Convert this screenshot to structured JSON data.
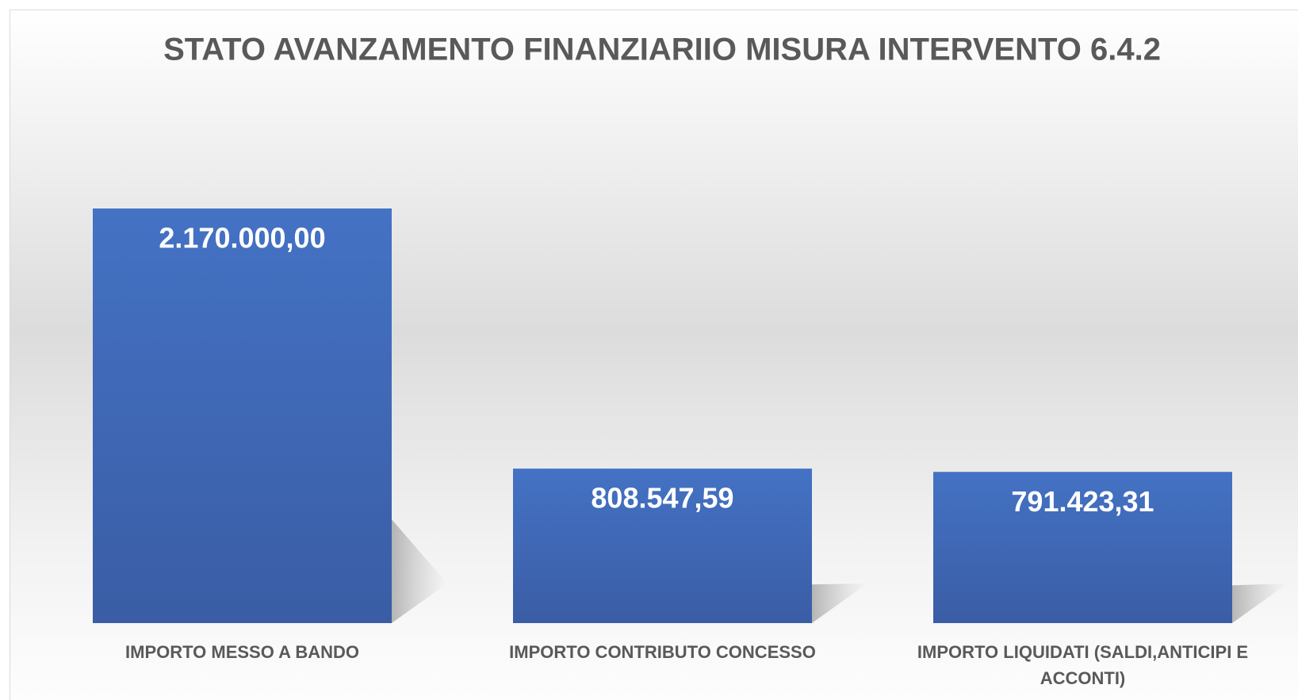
{
  "chart_data": {
    "type": "bar",
    "title": "STATO AVANZAMENTO FINANZIARIIO MISURA INTERVENTO 6.4.2",
    "categories": [
      "IMPORTO MESSO A BANDO",
      "IMPORTO CONTRIBUTO CONCESSO",
      "IMPORTO LIQUIDATI (SALDI,ANTICIPI E ACCONTI)"
    ],
    "values": [
      2170000,
      808547.59,
      791423.31
    ],
    "value_labels": [
      "2.170.000,00",
      "808.547,59",
      "791.423,31"
    ],
    "color": "#4472c4"
  }
}
